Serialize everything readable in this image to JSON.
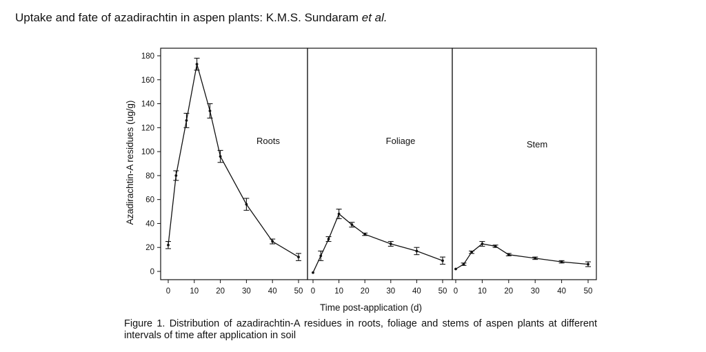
{
  "header": {
    "title_main": "Uptake and fate of azadirachtin in aspen plants: K.M.S. Sundaram ",
    "title_italic": "et al."
  },
  "caption": "Figure 1. Distribution of azadirachtin-A residues in roots, foliage and stems of aspen plants at different intervals of time after application in soil",
  "chart_data": [
    {
      "type": "line",
      "panel_label": "Roots",
      "ylabel": "Azadirachtin-A residues (ug/g)",
      "xlabel": "Time post-application (d)",
      "ylim": [
        0,
        180
      ],
      "xlim": [
        0,
        50
      ],
      "yticks": [
        0,
        20,
        40,
        60,
        80,
        100,
        120,
        140,
        160,
        180
      ],
      "xticks": [
        0,
        10,
        20,
        30,
        40,
        50
      ],
      "x": [
        0,
        3,
        7,
        11,
        16,
        20,
        30,
        40,
        50
      ],
      "y": [
        22,
        80,
        126,
        173,
        134,
        96,
        56,
        25,
        12
      ],
      "err": [
        3,
        4,
        6,
        5,
        6,
        5,
        5,
        2,
        3
      ]
    },
    {
      "type": "line",
      "panel_label": "Foliage",
      "ylabel": "",
      "xlabel": "Time post-application (d)",
      "ylim": [
        0,
        180
      ],
      "xlim": [
        0,
        50
      ],
      "xticks": [
        0,
        10,
        20,
        30,
        40,
        50
      ],
      "x": [
        0,
        3,
        6,
        10,
        15,
        20,
        30,
        40,
        50
      ],
      "y": [
        -1,
        13,
        27,
        48,
        39,
        31,
        23,
        17,
        9
      ],
      "err": [
        0,
        4,
        2,
        4,
        2,
        1,
        2,
        3,
        3
      ]
    },
    {
      "type": "line",
      "panel_label": "Stem",
      "ylabel": "",
      "xlabel": "Time post-application (d)",
      "ylim": [
        0,
        180
      ],
      "xlim": [
        0,
        50
      ],
      "xticks": [
        0,
        10,
        20,
        30,
        40,
        50
      ],
      "x": [
        0,
        3,
        6,
        10,
        15,
        20,
        30,
        40,
        50
      ],
      "y": [
        2,
        6,
        16,
        23,
        21,
        14,
        11,
        8,
        6
      ],
      "err": [
        0,
        1,
        1,
        2,
        1,
        1,
        1,
        1,
        2
      ]
    }
  ]
}
